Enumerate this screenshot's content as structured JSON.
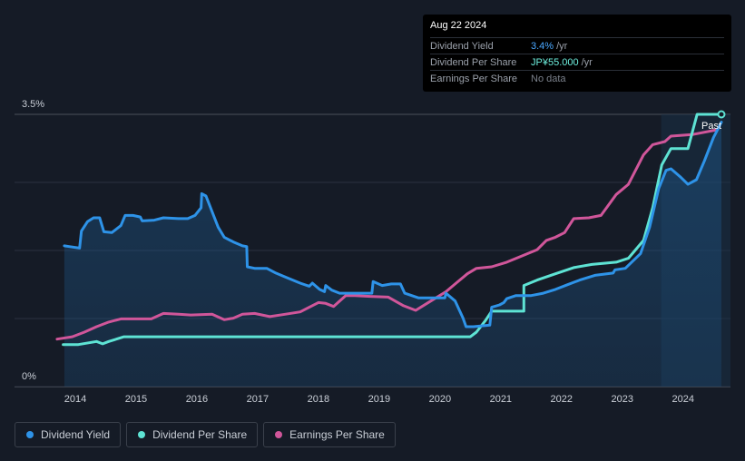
{
  "tooltip": {
    "date": "Aug 22 2024",
    "rows": [
      {
        "label": "Dividend Yield",
        "value": "3.4%",
        "unit": "/yr",
        "color": "#4aa8ff"
      },
      {
        "label": "Dividend Per Share",
        "value": "JP¥55.000",
        "unit": "/yr",
        "color": "#6ef0df"
      },
      {
        "label": "Earnings Per Share",
        "value": "No data",
        "unit": "",
        "color": "#7b818b"
      }
    ]
  },
  "past_label": "Past",
  "legend": [
    {
      "label": "Dividend Yield",
      "color": "#2e93e8"
    },
    {
      "label": "Dividend Per Share",
      "color": "#5ee3d4"
    },
    {
      "label": "Earnings Per Share",
      "color": "#d0569a"
    }
  ],
  "chart_data": {
    "type": "line",
    "xlabel": "",
    "ylabel": "",
    "x_ticks": [
      "2014",
      "2015",
      "2016",
      "2017",
      "2018",
      "2019",
      "2020",
      "2021",
      "2022",
      "2023",
      "2024"
    ],
    "y_ticks": [
      "0%",
      "3.5%"
    ],
    "ylim": [
      0,
      3.5
    ],
    "grid": true,
    "series": [
      {
        "name": "Dividend Yield",
        "color": "#2e93e8",
        "points": [
          [
            2013.82,
            1.81
          ],
          [
            2013.9,
            1.8
          ],
          [
            2014.07,
            1.78
          ],
          [
            2014.1,
            2.0
          ],
          [
            2014.2,
            2.12
          ],
          [
            2014.3,
            2.17
          ],
          [
            2014.4,
            2.17
          ],
          [
            2014.47,
            1.99
          ],
          [
            2014.6,
            1.98
          ],
          [
            2014.75,
            2.07
          ],
          [
            2014.82,
            2.2
          ],
          [
            2014.95,
            2.2
          ],
          [
            2015.07,
            2.18
          ],
          [
            2015.1,
            2.13
          ],
          [
            2015.3,
            2.14
          ],
          [
            2015.45,
            2.17
          ],
          [
            2015.7,
            2.16
          ],
          [
            2015.85,
            2.16
          ],
          [
            2015.97,
            2.2
          ],
          [
            2016.07,
            2.3
          ],
          [
            2016.08,
            2.48
          ],
          [
            2016.15,
            2.45
          ],
          [
            2016.35,
            2.05
          ],
          [
            2016.45,
            1.92
          ],
          [
            2016.6,
            1.86
          ],
          [
            2016.75,
            1.81
          ],
          [
            2016.82,
            1.8
          ],
          [
            2016.83,
            1.54
          ],
          [
            2016.95,
            1.52
          ],
          [
            2017.15,
            1.52
          ],
          [
            2017.3,
            1.46
          ],
          [
            2017.45,
            1.41
          ],
          [
            2017.7,
            1.33
          ],
          [
            2017.85,
            1.29
          ],
          [
            2017.9,
            1.33
          ],
          [
            2018.02,
            1.25
          ],
          [
            2018.1,
            1.22
          ],
          [
            2018.12,
            1.3
          ],
          [
            2018.22,
            1.24
          ],
          [
            2018.35,
            1.2
          ],
          [
            2018.88,
            1.2
          ],
          [
            2018.9,
            1.35
          ],
          [
            2019.05,
            1.3
          ],
          [
            2019.2,
            1.32
          ],
          [
            2019.35,
            1.32
          ],
          [
            2019.42,
            1.2
          ],
          [
            2019.65,
            1.14
          ],
          [
            2019.9,
            1.14
          ],
          [
            2020.08,
            1.14
          ],
          [
            2020.1,
            1.2
          ],
          [
            2020.25,
            1.1
          ],
          [
            2020.38,
            0.88
          ],
          [
            2020.43,
            0.77
          ],
          [
            2020.55,
            0.77
          ],
          [
            2020.82,
            0.79
          ],
          [
            2020.85,
            1.02
          ],
          [
            2020.98,
            1.05
          ],
          [
            2021.05,
            1.08
          ],
          [
            2021.1,
            1.13
          ],
          [
            2021.25,
            1.17
          ],
          [
            2021.5,
            1.17
          ],
          [
            2021.7,
            1.2
          ],
          [
            2021.9,
            1.25
          ],
          [
            2022.1,
            1.31
          ],
          [
            2022.3,
            1.37
          ],
          [
            2022.55,
            1.43
          ],
          [
            2022.85,
            1.46
          ],
          [
            2022.88,
            1.5
          ],
          [
            2023.05,
            1.52
          ],
          [
            2023.3,
            1.71
          ],
          [
            2023.45,
            2.05
          ],
          [
            2023.6,
            2.55
          ],
          [
            2023.72,
            2.78
          ],
          [
            2023.8,
            2.8
          ],
          [
            2023.95,
            2.7
          ],
          [
            2024.08,
            2.6
          ],
          [
            2024.22,
            2.66
          ],
          [
            2024.35,
            2.9
          ],
          [
            2024.5,
            3.2
          ],
          [
            2024.63,
            3.4
          ]
        ]
      },
      {
        "name": "Dividend Per Share",
        "color": "#5ee3d4",
        "points": [
          [
            2013.8,
            0.54
          ],
          [
            2014.05,
            0.54
          ],
          [
            2014.35,
            0.58
          ],
          [
            2014.45,
            0.55
          ],
          [
            2014.55,
            0.58
          ],
          [
            2014.8,
            0.64
          ],
          [
            2015.0,
            0.64
          ],
          [
            2020.45,
            0.64
          ],
          [
            2020.5,
            0.64
          ],
          [
            2020.6,
            0.7
          ],
          [
            2020.75,
            0.85
          ],
          [
            2020.85,
            0.97
          ],
          [
            2021.38,
            0.97
          ],
          [
            2021.38,
            1.3
          ],
          [
            2021.6,
            1.37
          ],
          [
            2021.9,
            1.45
          ],
          [
            2022.2,
            1.53
          ],
          [
            2022.5,
            1.57
          ],
          [
            2022.9,
            1.6
          ],
          [
            2023.1,
            1.65
          ],
          [
            2023.35,
            1.88
          ],
          [
            2023.5,
            2.3
          ],
          [
            2023.65,
            2.85
          ],
          [
            2023.8,
            3.06
          ],
          [
            2024.08,
            3.06
          ],
          [
            2024.23,
            3.5
          ],
          [
            2024.63,
            3.5
          ]
        ]
      },
      {
        "name": "Earnings Per Share",
        "color": "#d0569a",
        "points": [
          [
            2013.7,
            0.61
          ],
          [
            2013.95,
            0.64
          ],
          [
            2014.15,
            0.7
          ],
          [
            2014.35,
            0.77
          ],
          [
            2014.55,
            0.83
          ],
          [
            2014.75,
            0.87
          ],
          [
            2015.0,
            0.87
          ],
          [
            2015.25,
            0.87
          ],
          [
            2015.45,
            0.94
          ],
          [
            2015.7,
            0.93
          ],
          [
            2015.9,
            0.92
          ],
          [
            2016.25,
            0.93
          ],
          [
            2016.45,
            0.86
          ],
          [
            2016.6,
            0.88
          ],
          [
            2016.75,
            0.93
          ],
          [
            2016.95,
            0.94
          ],
          [
            2017.2,
            0.9
          ],
          [
            2017.45,
            0.93
          ],
          [
            2017.7,
            0.96
          ],
          [
            2017.85,
            1.02
          ],
          [
            2018.0,
            1.08
          ],
          [
            2018.12,
            1.07
          ],
          [
            2018.25,
            1.03
          ],
          [
            2018.45,
            1.17
          ],
          [
            2018.6,
            1.17
          ],
          [
            2018.85,
            1.16
          ],
          [
            2019.15,
            1.15
          ],
          [
            2019.4,
            1.04
          ],
          [
            2019.6,
            0.98
          ],
          [
            2019.85,
            1.1
          ],
          [
            2020.1,
            1.22
          ],
          [
            2020.25,
            1.32
          ],
          [
            2020.45,
            1.45
          ],
          [
            2020.6,
            1.52
          ],
          [
            2020.85,
            1.54
          ],
          [
            2021.1,
            1.6
          ],
          [
            2021.35,
            1.68
          ],
          [
            2021.6,
            1.76
          ],
          [
            2021.75,
            1.88
          ],
          [
            2021.9,
            1.92
          ],
          [
            2022.05,
            1.98
          ],
          [
            2022.2,
            2.16
          ],
          [
            2022.45,
            2.17
          ],
          [
            2022.65,
            2.2
          ],
          [
            2022.9,
            2.47
          ],
          [
            2023.1,
            2.6
          ],
          [
            2023.35,
            2.98
          ],
          [
            2023.5,
            3.11
          ],
          [
            2023.7,
            3.15
          ],
          [
            2023.8,
            3.22
          ],
          [
            2024.15,
            3.24
          ],
          [
            2024.55,
            3.3
          ]
        ]
      }
    ],
    "past_region_start": 2023.64
  }
}
